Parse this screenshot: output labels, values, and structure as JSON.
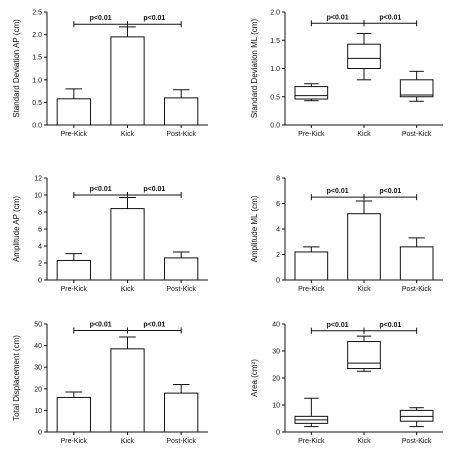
{
  "figure": "six-panel comparison",
  "chart_data": [
    {
      "type": "bar",
      "ylabel": "Standard Deviation AP (cm)",
      "categories": [
        "Pre-Kick",
        "Kick",
        "Post-Kick"
      ],
      "values": [
        0.58,
        1.95,
        0.6
      ],
      "errors": [
        0.22,
        0.22,
        0.18
      ],
      "ylim": [
        0,
        2.5
      ],
      "yticks": [
        "0.0",
        "0.5",
        "1.0",
        "1.5",
        "2.0",
        "2.5"
      ],
      "annotations": [
        {
          "text": "p<0.01",
          "from": 0,
          "to": 1,
          "y": 2.23
        },
        {
          "text": "p<0.01",
          "from": 1,
          "to": 2,
          "y": 2.23
        }
      ]
    },
    {
      "type": "box",
      "ylabel": "Standard Deviation ML (cm)",
      "categories": [
        "Pre-Kick",
        "Kick",
        "Post-Kick"
      ],
      "boxes": [
        {
          "min": 0.43,
          "q1": 0.46,
          "median": 0.52,
          "q3": 0.68,
          "max": 0.73
        },
        {
          "min": 0.8,
          "q1": 1.0,
          "median": 1.18,
          "q3": 1.43,
          "max": 1.62
        },
        {
          "min": 0.42,
          "q1": 0.5,
          "median": 0.53,
          "q3": 0.8,
          "max": 0.95
        }
      ],
      "ylim": [
        0,
        2.0
      ],
      "yticks": [
        "0.0",
        "0.5",
        "1.0",
        "1.5",
        "2.0"
      ],
      "annotations": [
        {
          "text": "p<0.01",
          "from": 0,
          "to": 1,
          "y": 1.8
        },
        {
          "text": "p<0.01",
          "from": 1,
          "to": 2,
          "y": 1.8
        }
      ]
    },
    {
      "type": "bar",
      "ylabel": "Amplitude AP (cm)",
      "categories": [
        "Pre-Kick",
        "Kick",
        "Post-Kick"
      ],
      "values": [
        2.3,
        8.4,
        2.6
      ],
      "errors": [
        0.8,
        1.3,
        0.7
      ],
      "ylim": [
        0,
        12
      ],
      "yticks": [
        "0",
        "2",
        "4",
        "6",
        "8",
        "10",
        "12"
      ],
      "annotations": [
        {
          "text": "p<0.01",
          "from": 0,
          "to": 1,
          "y": 10.0
        },
        {
          "text": "p<0.01",
          "from": 1,
          "to": 2,
          "y": 10.0
        }
      ]
    },
    {
      "type": "bar",
      "ylabel": "Amplitude ML (cm)",
      "categories": [
        "Pre-Kick",
        "Kick",
        "Post-Kick"
      ],
      "values": [
        2.2,
        5.2,
        2.6
      ],
      "errors": [
        0.4,
        1.0,
        0.7
      ],
      "ylim": [
        0,
        8
      ],
      "yticks": [
        "0",
        "2",
        "4",
        "6",
        "8"
      ],
      "annotations": [
        {
          "text": "p<0.01",
          "from": 0,
          "to": 1,
          "y": 6.5
        },
        {
          "text": "p<0.01",
          "from": 1,
          "to": 2,
          "y": 6.5
        }
      ]
    },
    {
      "type": "bar",
      "ylabel": "Total Displacement (cm)",
      "categories": [
        "Pre-Kick",
        "Kick",
        "Post-Kick"
      ],
      "values": [
        16,
        38.5,
        18
      ],
      "errors": [
        2.5,
        5.5,
        4.0
      ],
      "ylim": [
        0,
        50
      ],
      "yticks": [
        "0",
        "10",
        "20",
        "30",
        "40",
        "50"
      ],
      "annotations": [
        {
          "text": "p<0.01",
          "from": 0,
          "to": 1,
          "y": 47
        },
        {
          "text": "p<0.01",
          "from": 1,
          "to": 2,
          "y": 47
        }
      ]
    },
    {
      "type": "box",
      "ylabel": "Area (cm²)",
      "categories": [
        "Pre-Kick",
        "Kick",
        "Post-Kick"
      ],
      "boxes": [
        {
          "min": 2.0,
          "q1": 3.2,
          "median": 4.5,
          "q3": 5.8,
          "max": 12.5
        },
        {
          "min": 22.5,
          "q1": 23.5,
          "median": 25.5,
          "q3": 33.5,
          "max": 35.5
        },
        {
          "min": 2.0,
          "q1": 4.0,
          "median": 5.8,
          "q3": 8.0,
          "max": 9.0
        }
      ],
      "ylim": [
        0,
        40
      ],
      "yticks": [
        "0",
        "10",
        "20",
        "30",
        "40"
      ],
      "annotations": [
        {
          "text": "p<0.01",
          "from": 0,
          "to": 1,
          "y": 37.5
        },
        {
          "text": "p<0.01",
          "from": 1,
          "to": 2,
          "y": 37.5
        }
      ]
    }
  ]
}
